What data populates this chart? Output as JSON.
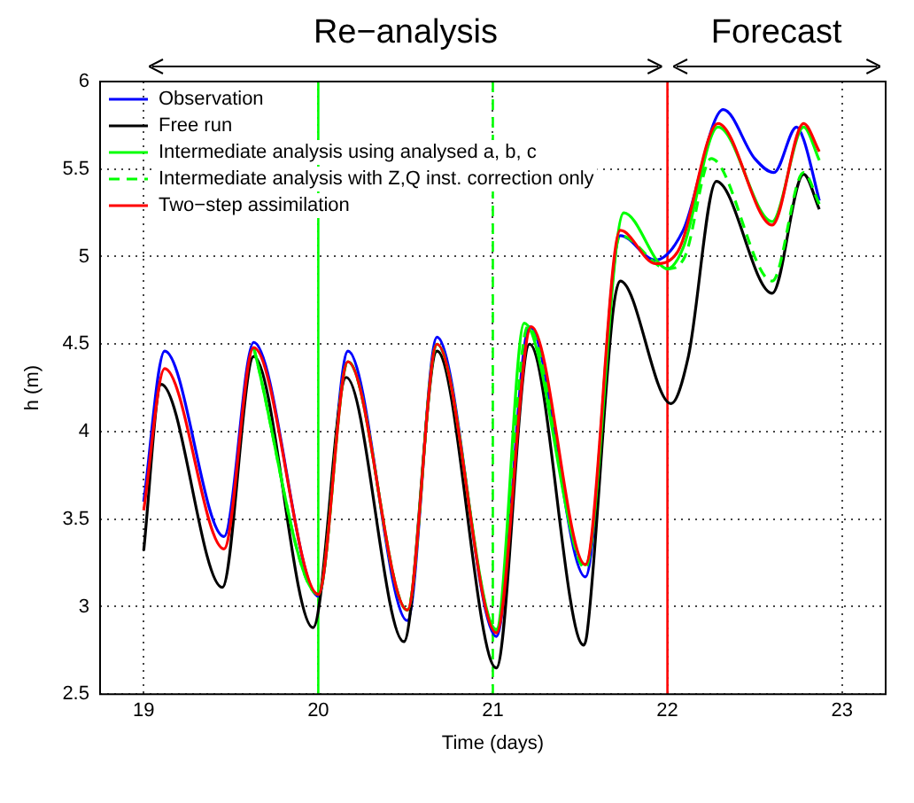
{
  "chart_data": {
    "type": "line",
    "xlabel": "Time (days)",
    "ylabel": "h (m)",
    "xlim": [
      18.75,
      23.25
    ],
    "xticks": [
      19,
      20,
      21,
      22,
      23
    ],
    "ylim": [
      2.5,
      6
    ],
    "yticks": [
      2.5,
      3,
      3.5,
      4,
      4.5,
      5,
      5.5,
      6
    ],
    "grid": true,
    "legend": "top left",
    "marker": "none",
    "annotations": [
      "Re−analysis",
      "Forecast"
    ],
    "ref_lines": [
      {
        "axis": "x",
        "value": 20,
        "color": "#00ff00",
        "line_style": "solid"
      },
      {
        "axis": "x",
        "value": 21,
        "color": "#00ff00",
        "line_style": "dashed"
      },
      {
        "axis": "x",
        "value": 22,
        "color": "#ff0000",
        "line_style": "solid"
      }
    ],
    "series": [
      {
        "name": "Observation",
        "color": "#0000ff",
        "x": [
          19.0,
          19.12,
          19.46,
          19.63,
          20.0,
          20.17,
          20.51,
          20.68,
          21.02,
          21.21,
          21.53,
          21.73,
          21.93,
          22.09,
          22.32,
          22.5,
          22.61,
          22.74,
          22.78,
          22.87
        ],
        "values": [
          3.6,
          4.46,
          3.4,
          4.51,
          3.06,
          4.46,
          2.92,
          4.54,
          2.83,
          4.6,
          3.17,
          5.12,
          4.98,
          5.15,
          5.84,
          5.56,
          5.48,
          5.74,
          5.67,
          5.32
        ]
      },
      {
        "name": "Free run",
        "color": "#000000",
        "x": [
          19.0,
          19.1,
          19.45,
          19.63,
          19.97,
          20.16,
          20.49,
          20.68,
          21.02,
          21.21,
          21.52,
          21.54,
          21.69,
          21.73,
          22.02,
          22.12,
          22.28,
          22.6,
          22.78,
          22.87
        ],
        "values": [
          3.32,
          4.27,
          3.11,
          4.43,
          2.88,
          4.31,
          2.8,
          4.46,
          2.65,
          4.5,
          2.78,
          2.85,
          4.7,
          4.86,
          4.16,
          4.43,
          5.43,
          4.79,
          5.47,
          5.27
        ]
      },
      {
        "name": "Intermediate analysis using analysed a, b, c",
        "color": "#00ff00",
        "x": [
          19.63,
          20.0,
          20.17,
          20.51,
          20.68,
          21.02,
          21.18,
          21.53,
          21.75,
          22.0,
          22.09,
          22.29,
          22.6,
          22.78,
          22.87
        ],
        "values": [
          4.48,
          3.07,
          4.4,
          2.98,
          4.5,
          2.87,
          4.62,
          3.24,
          5.25,
          4.93,
          5.05,
          5.74,
          5.2,
          5.74,
          5.55
        ]
      },
      {
        "name": "Intermediate analysis with Z,Q inst. correction only",
        "color": "#00ff00",
        "line_style": "dashed",
        "x": [
          19.63,
          20.0,
          20.17,
          20.51,
          20.68,
          21.02,
          21.2,
          21.53,
          21.73,
          22.0,
          22.1,
          22.25,
          22.6,
          22.78,
          22.87
        ],
        "values": [
          4.48,
          3.07,
          4.4,
          2.98,
          4.5,
          2.86,
          4.6,
          3.22,
          5.12,
          4.93,
          5.0,
          5.56,
          4.86,
          5.48,
          5.3
        ]
      },
      {
        "name": "Two−step assimilation",
        "color": "#ff0000",
        "x": [
          19.0,
          19.12,
          19.46,
          19.63,
          20.0,
          20.17,
          20.51,
          20.68,
          21.02,
          21.22,
          21.53,
          21.73,
          21.93,
          22.06,
          22.29,
          22.6,
          22.78,
          22.87
        ],
        "values": [
          3.55,
          4.36,
          3.33,
          4.48,
          3.07,
          4.4,
          2.98,
          4.5,
          2.85,
          4.6,
          3.24,
          5.15,
          4.96,
          5.03,
          5.76,
          5.18,
          5.76,
          5.6
        ]
      }
    ]
  }
}
